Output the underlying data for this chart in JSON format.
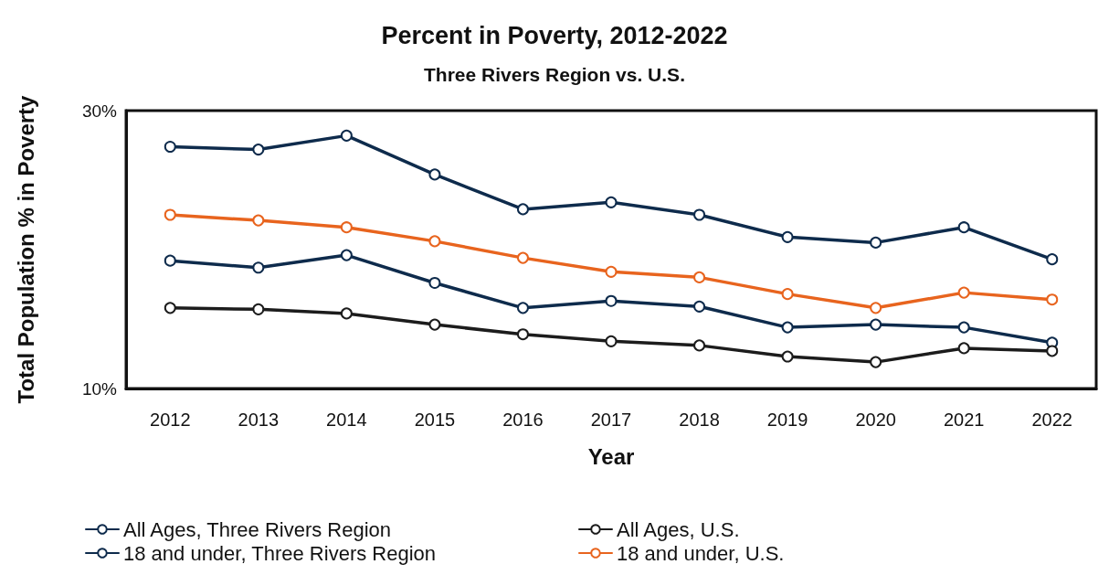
{
  "chart_data": {
    "type": "line",
    "title": "Percent in Poverty, 2012-2022",
    "subtitle": "Three Rivers Region vs. U.S.",
    "xlabel": "Year",
    "ylabel": "Total Population % in Poverty",
    "categories": [
      "2012",
      "2013",
      "2014",
      "2015",
      "2016",
      "2017",
      "2018",
      "2019",
      "2020",
      "2021",
      "2022"
    ],
    "series": [
      {
        "name": "All Ages, Three Rivers Region",
        "color": "#0e2b4c",
        "values": [
          19.2,
          18.7,
          19.6,
          17.6,
          15.8,
          16.3,
          15.9,
          14.4,
          14.6,
          14.4,
          13.3
        ]
      },
      {
        "name": "18 and under, Three Rivers Region",
        "color": "#0e2b4c",
        "values": [
          27.4,
          27.2,
          28.2,
          25.4,
          22.9,
          23.4,
          22.5,
          20.9,
          20.5,
          21.6,
          19.3
        ]
      },
      {
        "name": "All Ages, U.S.",
        "color": "#1c1c1c",
        "values": [
          15.8,
          15.7,
          15.4,
          14.6,
          13.9,
          13.4,
          13.1,
          12.3,
          11.9,
          12.9,
          12.7
        ]
      },
      {
        "name": "18 and under, U.S.",
        "color": "#e8641e",
        "values": [
          22.5,
          22.1,
          21.6,
          20.6,
          19.4,
          18.4,
          18.0,
          16.8,
          15.8,
          16.9,
          16.4
        ]
      }
    ],
    "ylim": [
      10,
      30
    ],
    "yticks": [
      {
        "value": 10,
        "label": "10%"
      },
      {
        "value": 30,
        "label": "30%"
      }
    ],
    "grid": false,
    "legend": "bottom",
    "marker": "circle",
    "line_style": "solid"
  }
}
